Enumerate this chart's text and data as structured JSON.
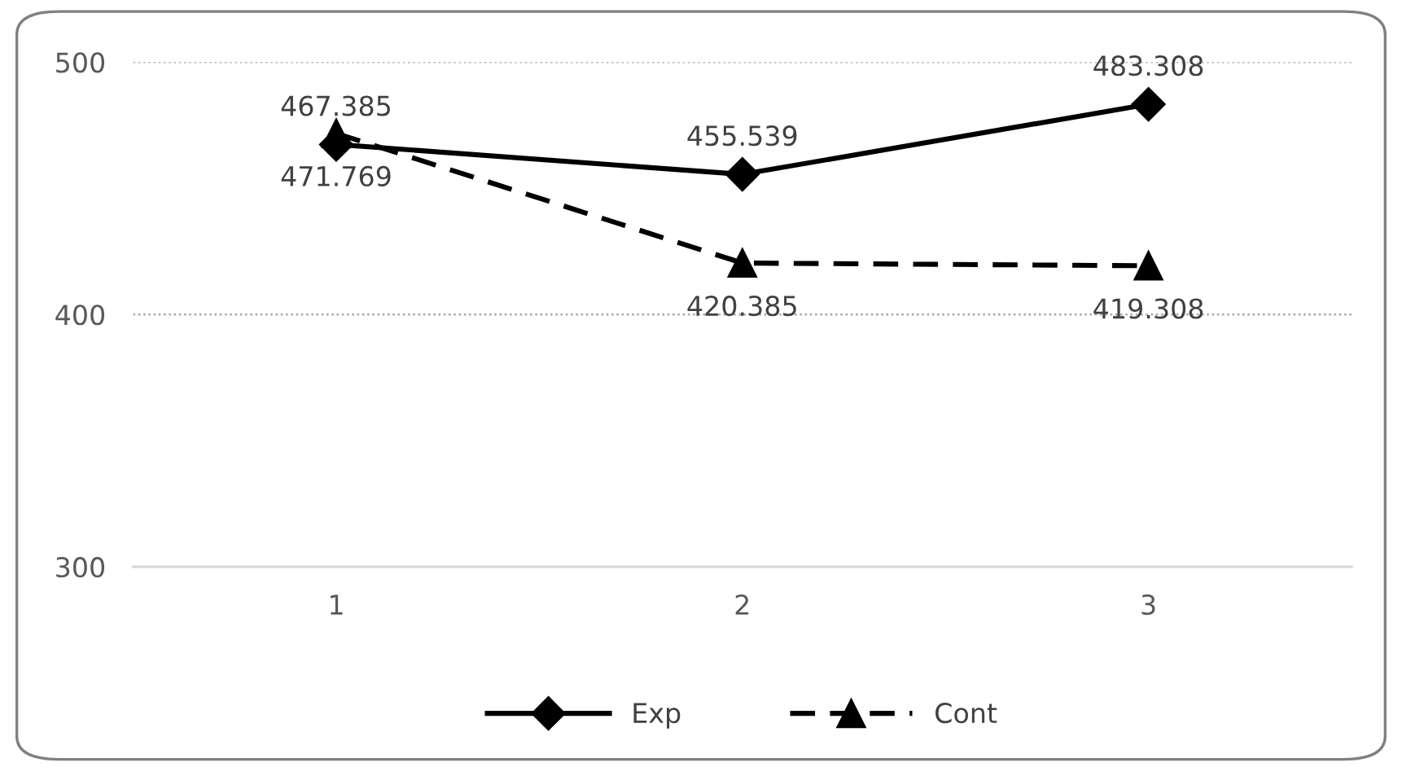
{
  "chart_data": {
    "type": "line",
    "categories": [
      "1",
      "2",
      "3"
    ],
    "series": [
      {
        "name": "Exp",
        "color": "#000000",
        "marker": "diamond",
        "line_style": "solid",
        "values": [
          467.385,
          455.539,
          483.308
        ]
      },
      {
        "name": "Cont",
        "color": "#000000",
        "marker": "triangle",
        "line_style": "dashed",
        "values": [
          471.769,
          420.385,
          419.308
        ]
      }
    ],
    "ylim": [
      300,
      500
    ],
    "yticks": [
      300,
      400,
      500
    ],
    "grid": "y",
    "legend": "bottom",
    "data_labels": true
  }
}
